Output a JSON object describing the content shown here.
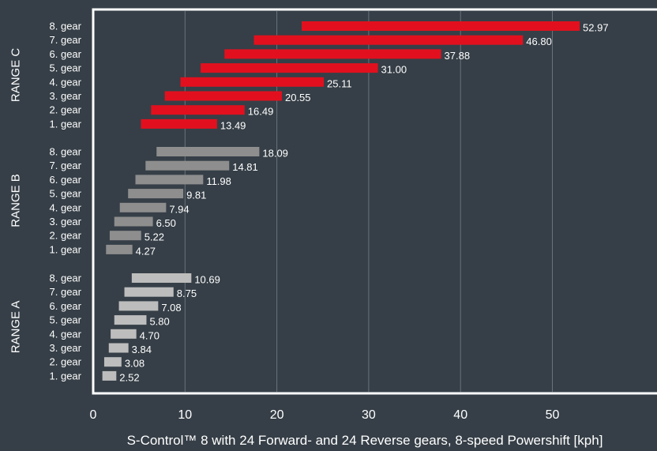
{
  "colors": {
    "background": "#363f47",
    "grid": "#6a737b",
    "frame": "#ffffff",
    "text": "#ffffff",
    "range_c": "#e2101e",
    "range_b": "#8e8e8e",
    "range_a": "#bdbdbd"
  },
  "chart_data": {
    "type": "bar",
    "orientation": "horizontal floating range bars",
    "xlabel": "S-Control™ 8 with 24 Forward- and 24 Reverse gears, 8-speed Powershift [kph]",
    "xlim": [
      0,
      60
    ],
    "xticks": [
      0,
      10,
      20,
      30,
      40,
      50
    ],
    "grid": "vertical lines at x ticks",
    "groups": [
      {
        "name": "RANGE C",
        "color_key": "range_c",
        "gears": [
          {
            "label": "8. gear",
            "start": 22.7,
            "end": 52.97,
            "value_label": "52.97"
          },
          {
            "label": "7. gear",
            "start": 17.5,
            "end": 46.8,
            "value_label": "46.80"
          },
          {
            "label": "6. gear",
            "start": 14.3,
            "end": 37.88,
            "value_label": "37.88"
          },
          {
            "label": "5. gear",
            "start": 11.7,
            "end": 31.0,
            "value_label": "31.00"
          },
          {
            "label": "4. gear",
            "start": 9.5,
            "end": 25.11,
            "value_label": "25.11"
          },
          {
            "label": "3. gear",
            "start": 7.8,
            "end": 20.55,
            "value_label": "20.55"
          },
          {
            "label": "2. gear",
            "start": 6.3,
            "end": 16.49,
            "value_label": "16.49"
          },
          {
            "label": "1. gear",
            "start": 5.2,
            "end": 13.49,
            "value_label": "13.49"
          }
        ]
      },
      {
        "name": "RANGE B",
        "color_key": "range_b",
        "gears": [
          {
            "label": "8. gear",
            "start": 6.9,
            "end": 18.09,
            "value_label": "18.09"
          },
          {
            "label": "7. gear",
            "start": 5.7,
            "end": 14.81,
            "value_label": "14.81"
          },
          {
            "label": "6. gear",
            "start": 4.6,
            "end": 11.98,
            "value_label": "11.98"
          },
          {
            "label": "5. gear",
            "start": 3.8,
            "end": 9.81,
            "value_label": "9.81"
          },
          {
            "label": "4. gear",
            "start": 2.9,
            "end": 7.94,
            "value_label": "7.94"
          },
          {
            "label": "3. gear",
            "start": 2.3,
            "end": 6.5,
            "value_label": "6.50"
          },
          {
            "label": "2. gear",
            "start": 1.8,
            "end": 5.22,
            "value_label": "5.22"
          },
          {
            "label": "1. gear",
            "start": 1.4,
            "end": 4.27,
            "value_label": "4.27"
          }
        ]
      },
      {
        "name": "RANGE A",
        "color_key": "range_a",
        "gears": [
          {
            "label": "8. gear",
            "start": 4.2,
            "end": 10.69,
            "value_label": "10.69"
          },
          {
            "label": "7. gear",
            "start": 3.4,
            "end": 8.75,
            "value_label": "8.75"
          },
          {
            "label": "6. gear",
            "start": 2.8,
            "end": 7.08,
            "value_label": "7.08"
          },
          {
            "label": "5. gear",
            "start": 2.3,
            "end": 5.8,
            "value_label": "5.80"
          },
          {
            "label": "4. gear",
            "start": 1.9,
            "end": 4.7,
            "value_label": "4.70"
          },
          {
            "label": "3. gear",
            "start": 1.7,
            "end": 3.84,
            "value_label": "3.84"
          },
          {
            "label": "2. gear",
            "start": 1.2,
            "end": 3.08,
            "value_label": "3.08"
          },
          {
            "label": "1. gear",
            "start": 1.0,
            "end": 2.52,
            "value_label": "2.52"
          }
        ]
      }
    ]
  }
}
